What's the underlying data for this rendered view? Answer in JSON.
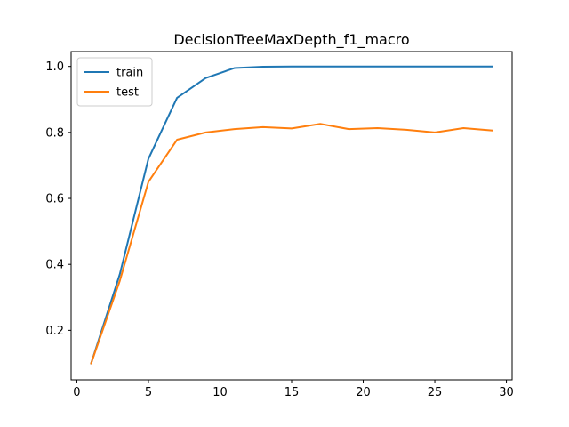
{
  "chart_data": {
    "type": "line",
    "title": "DecisionTreeMaxDepth_f1_macro",
    "xlabel": "",
    "ylabel": "",
    "xlim": [
      -0.4,
      30.4
    ],
    "ylim": [
      0.05,
      1.045
    ],
    "x_ticks": [
      0,
      5,
      10,
      15,
      20,
      25,
      30
    ],
    "y_ticks": [
      0.2,
      0.4,
      0.6,
      0.8,
      1.0
    ],
    "grid": false,
    "legend_position": "top-left",
    "x": [
      1,
      3,
      5,
      7,
      9,
      11,
      13,
      15,
      17,
      19,
      21,
      23,
      25,
      27,
      29
    ],
    "series": [
      {
        "name": "train",
        "color": "#1f77b4",
        "values": [
          0.1,
          0.37,
          0.72,
          0.905,
          0.965,
          0.995,
          0.999,
          1.0,
          1.0,
          1.0,
          1.0,
          1.0,
          1.0,
          1.0,
          1.0
        ]
      },
      {
        "name": "test",
        "color": "#ff7f0e",
        "values": [
          0.1,
          0.35,
          0.65,
          0.778,
          0.8,
          0.81,
          0.816,
          0.812,
          0.826,
          0.81,
          0.813,
          0.808,
          0.8,
          0.813,
          0.806
        ]
      }
    ]
  }
}
